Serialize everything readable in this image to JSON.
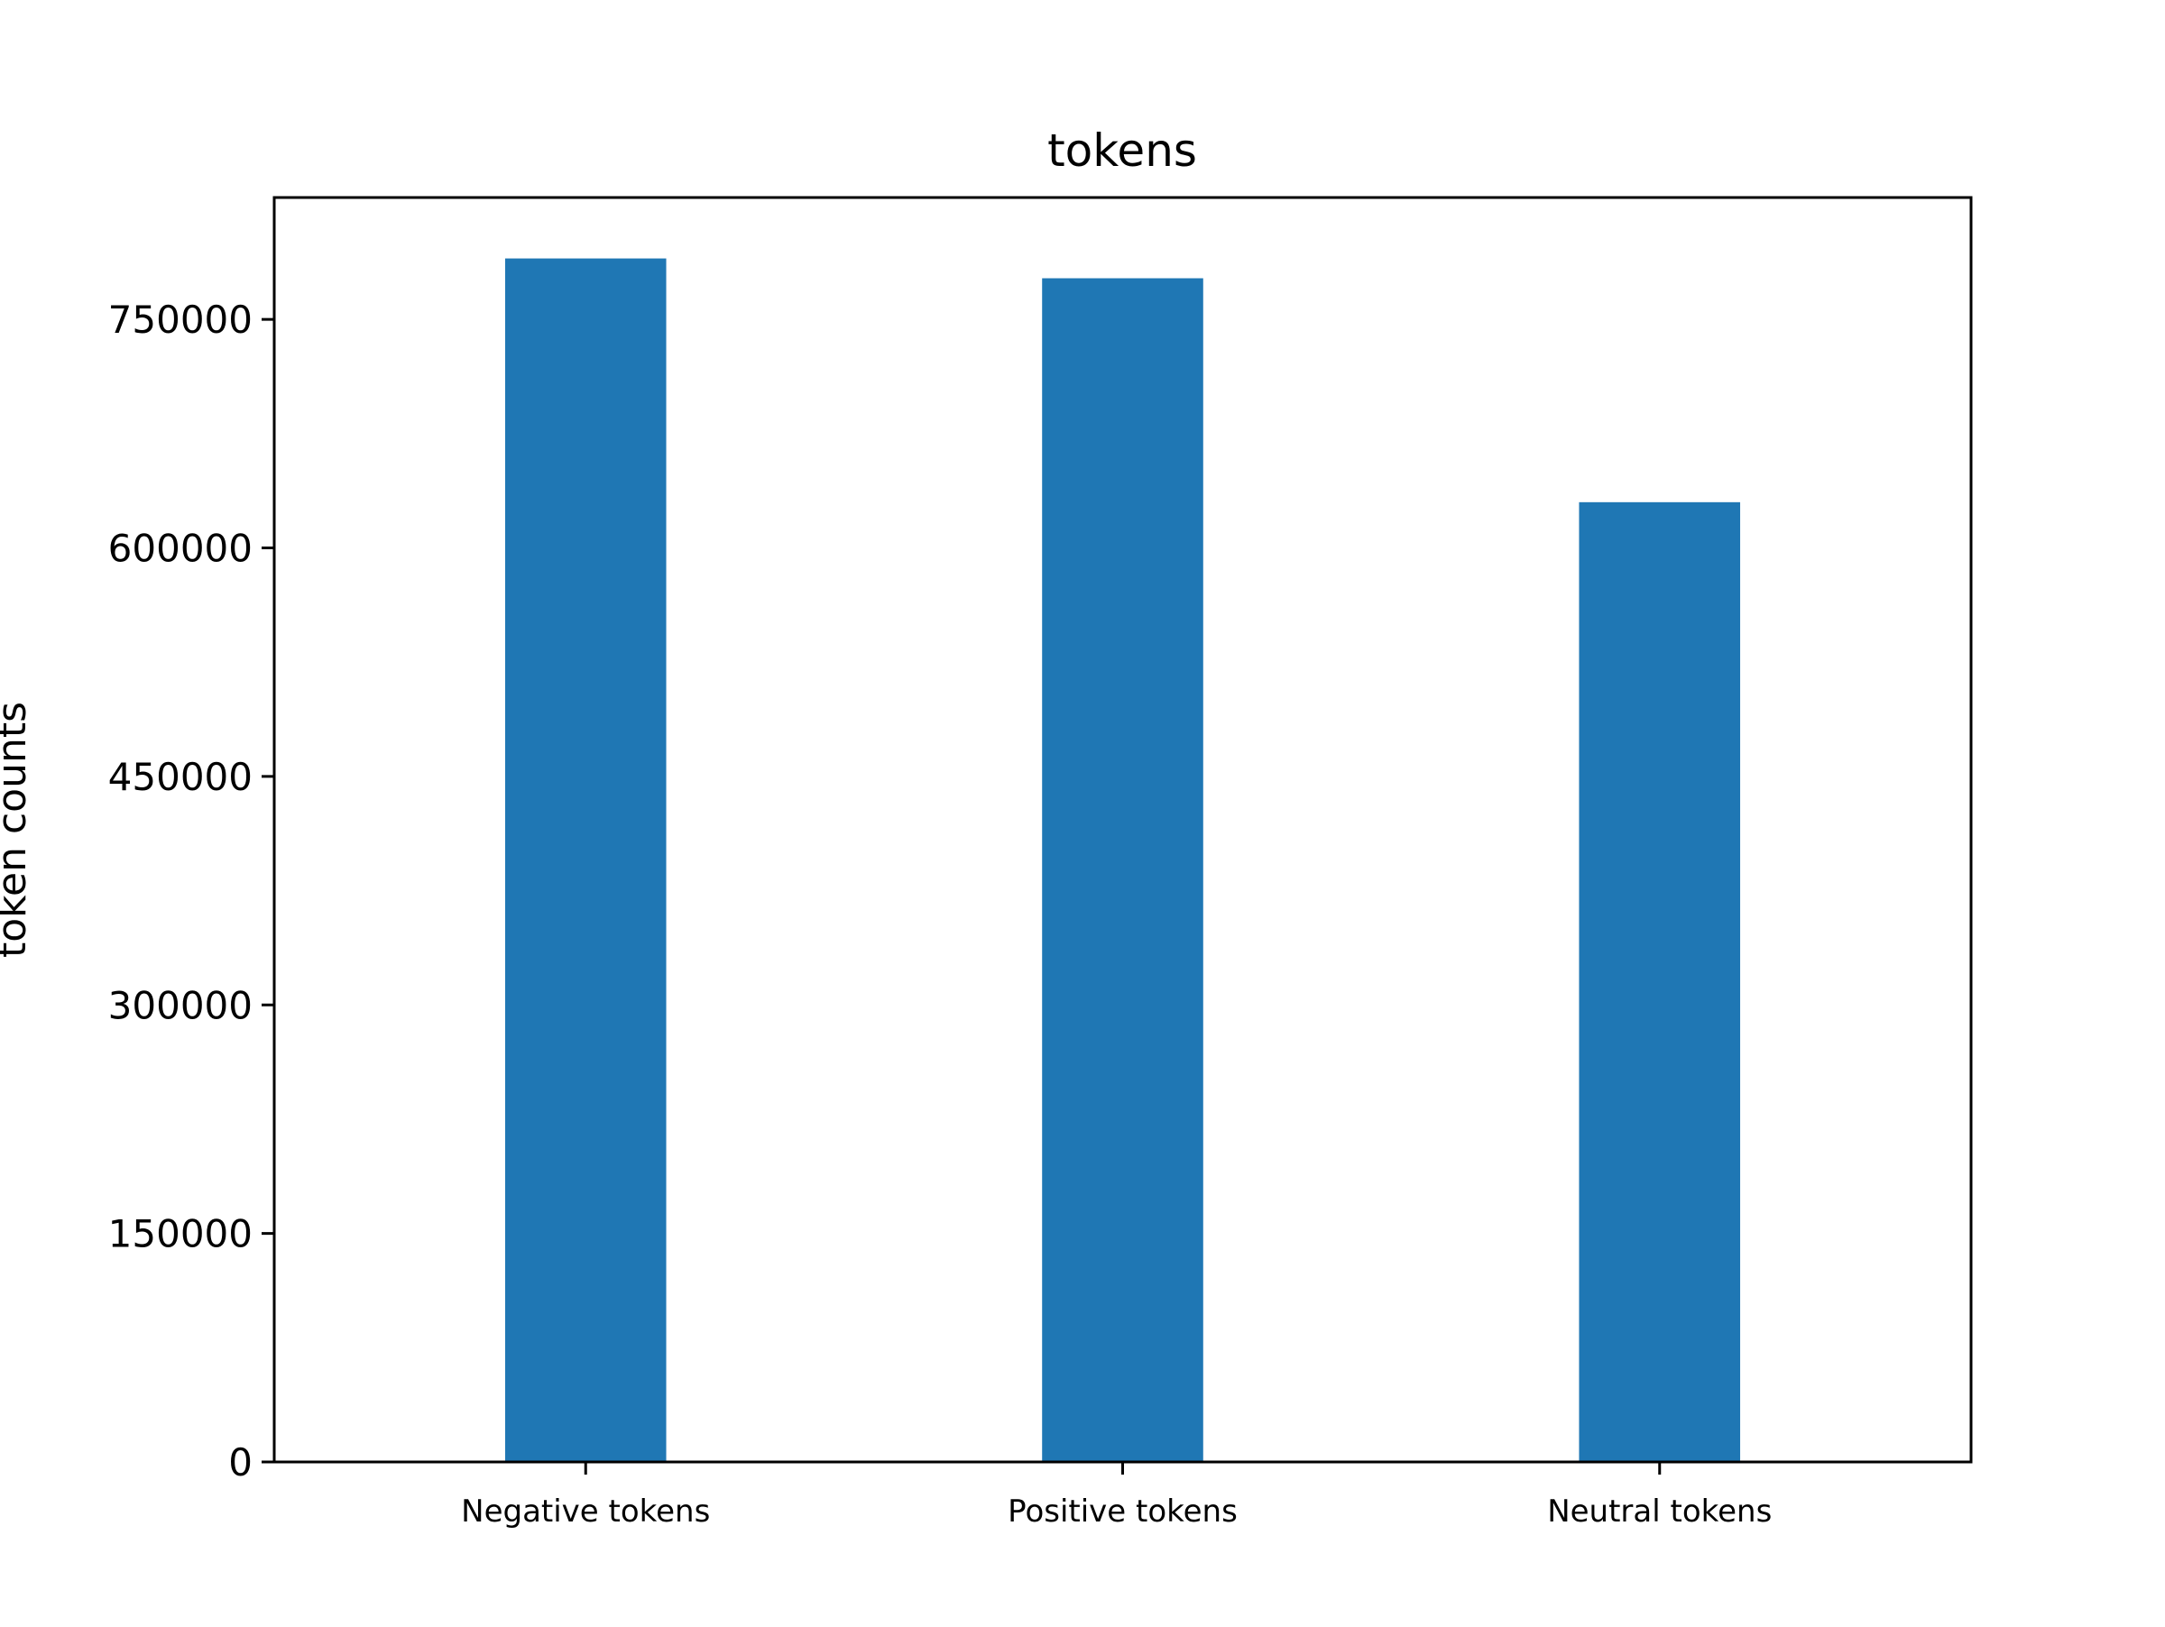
{
  "chart_data": {
    "type": "bar",
    "title": "tokens",
    "xlabel": "",
    "ylabel": "token counts",
    "categories": [
      "Negative tokens",
      "Positive tokens",
      "Neutral tokens"
    ],
    "values": [
      790000,
      777000,
      630000
    ],
    "ylim": [
      0,
      830000
    ],
    "yticks": [
      0,
      150000,
      300000,
      450000,
      600000,
      750000
    ],
    "ytick_labels": [
      "0",
      "150000",
      "300000",
      "450000",
      "600000",
      "750000"
    ],
    "bar_color": "#1f77b4",
    "grid": false,
    "legend": "none"
  }
}
